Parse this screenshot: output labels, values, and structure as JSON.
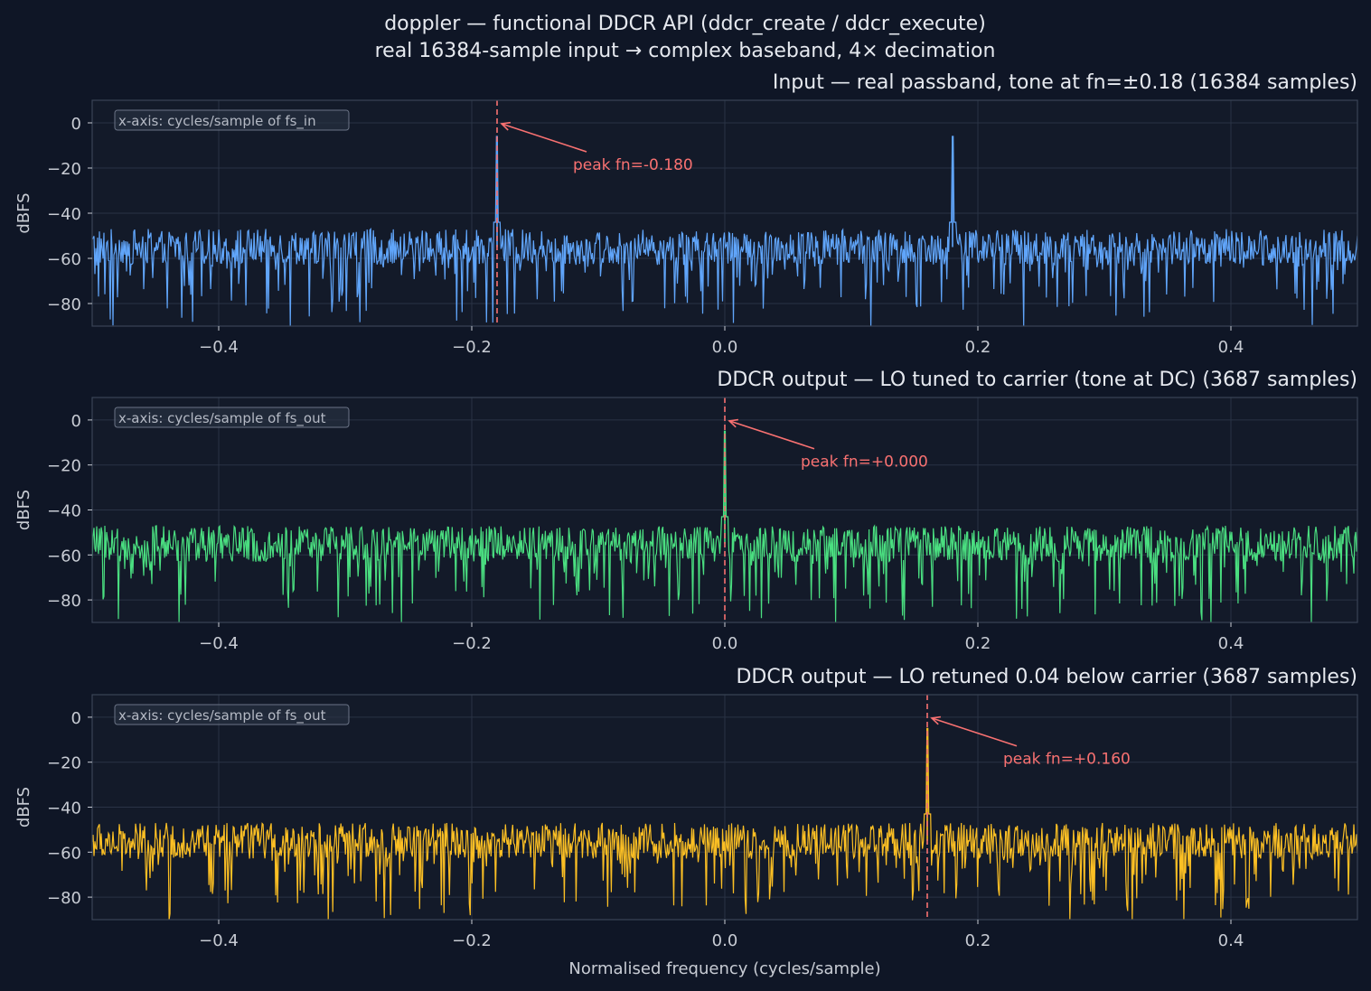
{
  "figure": {
    "title_line1": "doppler — functional DDCR API (ddcr_create / ddcr_execute)",
    "title_line2": "real 16384-sample input → complex baseband, 4× decimation",
    "xlabel": "Normalised frequency (cycles/sample)",
    "colors": {
      "background": "#0f1626",
      "axes_face": "#131a29",
      "grid": "#2a3345",
      "spine": "#3a4456",
      "text": "#e6e9ef",
      "tick_text": "#c8ccd4",
      "marker": "#f87171"
    }
  },
  "chart_data": [
    {
      "type": "line",
      "title": "Input — real passband, tone at fn=±0.18  (16384 samples)",
      "ylabel": "dBFS",
      "xlim": [
        -0.5,
        0.5
      ],
      "ylim": [
        -90,
        10
      ],
      "xticks": [
        -0.4,
        -0.2,
        0.0,
        0.2,
        0.4
      ],
      "xtick_labels": [
        "−0.4",
        "−0.2",
        "0.0",
        "0.2",
        "0.4"
      ],
      "yticks": [
        0,
        -20,
        -40,
        -60,
        -80
      ],
      "ytick_labels": [
        "0",
        "−20",
        "−40",
        "−60",
        "−80"
      ],
      "grid": true,
      "note": "x-axis: cycles/sample of fs_in",
      "series": [
        {
          "color": "#60a5fa",
          "noise_floor_dbfs": -55,
          "noise_min_dbfs": -90,
          "peaks": [
            {
              "x": -0.18,
              "y": -6
            },
            {
              "x": 0.18,
              "y": -6
            }
          ]
        }
      ],
      "marker_line_x": -0.18,
      "annotation": {
        "text": "peak fn=-0.180",
        "x": -0.18,
        "y": 0,
        "text_x": -0.12,
        "text_y": -16
      }
    },
    {
      "type": "line",
      "title": "DDCR output — LO tuned to carrier (tone at DC)  (3687 samples)",
      "ylabel": "dBFS",
      "xlim": [
        -0.5,
        0.5
      ],
      "ylim": [
        -90,
        10
      ],
      "xticks": [
        -0.4,
        -0.2,
        0.0,
        0.2,
        0.4
      ],
      "xtick_labels": [
        "−0.4",
        "−0.2",
        "0.0",
        "0.2",
        "0.4"
      ],
      "yticks": [
        0,
        -20,
        -40,
        -60,
        -80
      ],
      "ytick_labels": [
        "0",
        "−20",
        "−40",
        "−60",
        "−80"
      ],
      "grid": true,
      "note": "x-axis: cycles/sample of fs_out",
      "series": [
        {
          "color": "#4ade80",
          "noise_floor_dbfs": -55,
          "noise_min_dbfs": -90,
          "peaks": [
            {
              "x": 0.0,
              "y": -5
            }
          ]
        }
      ],
      "marker_line_x": 0.0,
      "annotation": {
        "text": "peak fn=+0.000",
        "x": 0.0,
        "y": 0,
        "text_x": 0.06,
        "text_y": -16
      }
    },
    {
      "type": "line",
      "title": "DDCR output — LO retuned 0.04 below carrier  (3687 samples)",
      "ylabel": "dBFS",
      "xlim": [
        -0.5,
        0.5
      ],
      "ylim": [
        -90,
        10
      ],
      "xticks": [
        -0.4,
        -0.2,
        0.0,
        0.2,
        0.4
      ],
      "xtick_labels": [
        "−0.4",
        "−0.2",
        "0.0",
        "0.2",
        "0.4"
      ],
      "yticks": [
        0,
        -20,
        -40,
        -60,
        -80
      ],
      "ytick_labels": [
        "0",
        "−20",
        "−40",
        "−60",
        "−80"
      ],
      "grid": true,
      "note": "x-axis: cycles/sample of fs_out",
      "series": [
        {
          "color": "#fbbf24",
          "noise_floor_dbfs": -55,
          "noise_min_dbfs": -90,
          "peaks": [
            {
              "x": 0.16,
              "y": -5
            }
          ]
        }
      ],
      "marker_line_x": 0.16,
      "annotation": {
        "text": "peak fn=+0.160",
        "x": 0.16,
        "y": 0,
        "text_x": 0.22,
        "text_y": -16
      }
    }
  ]
}
